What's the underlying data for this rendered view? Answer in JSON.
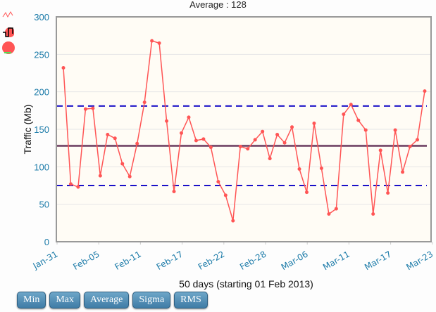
{
  "chart_data": {
    "type": "line",
    "title": "Average : 128",
    "xlabel": "50 days (starting 01 Feb 2013)",
    "ylabel": "Traffic (Mb)",
    "ylim": [
      0,
      300
    ],
    "yticks": [
      0,
      50,
      100,
      150,
      200,
      250,
      300
    ],
    "xticks": [
      "Jan-31",
      "Feb-05",
      "Feb-11",
      "Feb-17",
      "Feb-22",
      "Feb-28",
      "Mar-06",
      "Mar-11",
      "Mar-17",
      "Mar-23"
    ],
    "grid": true,
    "series": [
      {
        "name": "Traffic",
        "color": "#ff5555",
        "values": [
          232,
          77,
          73,
          177,
          178,
          88,
          143,
          138,
          104,
          87,
          131,
          186,
          268,
          265,
          161,
          67,
          145,
          166,
          135,
          137,
          126,
          80,
          62,
          28,
          127,
          124,
          136,
          147,
          111,
          143,
          132,
          153,
          97,
          66,
          158,
          98,
          37,
          44,
          170,
          183,
          162,
          149,
          37,
          122,
          65,
          149,
          93,
          127,
          136,
          201
        ]
      }
    ],
    "reference_lines": {
      "average": 128,
      "upper_sigma": 181,
      "lower_sigma": 75
    }
  },
  "buttons": [
    "Min",
    "Max",
    "Average",
    "Sigma",
    "RMS"
  ],
  "icons": [
    "line-chart-icon",
    "bar-chart-icon",
    "pie-chart-icon"
  ]
}
